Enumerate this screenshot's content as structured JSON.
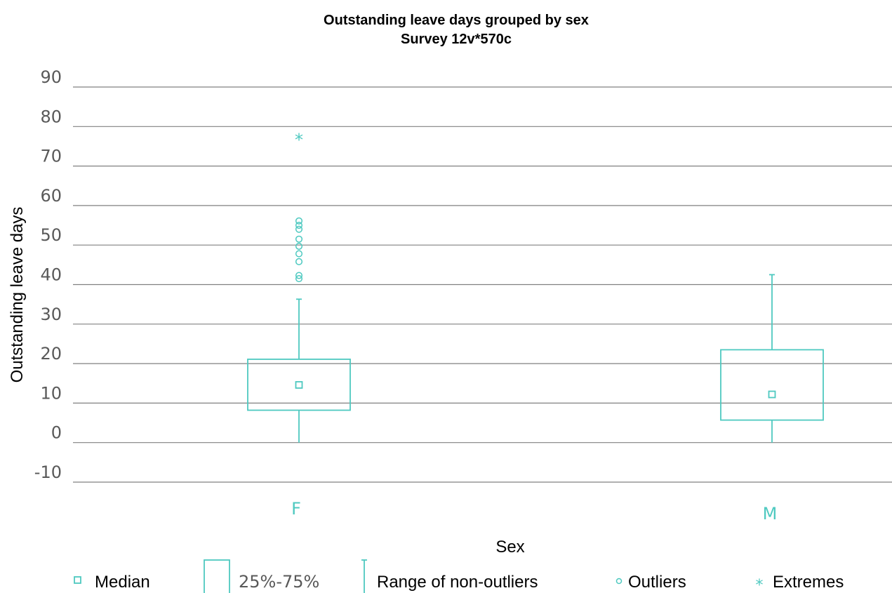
{
  "chart_data": {
    "type": "box",
    "title": "Outstanding leave days grouped by sex",
    "subtitle": "Survey 12v*570c",
    "xlabel": "Sex",
    "ylabel": "Outstanding leave days",
    "ylim": [
      -10,
      90
    ],
    "yticks": [
      "90",
      "80",
      "70",
      "60",
      "50",
      "40",
      "30",
      "20",
      "10",
      "0",
      "-10"
    ],
    "grid": true,
    "legend_position": "bottom",
    "color": "#4ec9c0",
    "categories": [
      "F",
      "M"
    ],
    "boxes": [
      {
        "category": "F",
        "median": 14.6,
        "q1": 8.2,
        "q3": 21.1,
        "whisker_low": 0,
        "whisker_high": 36.3,
        "outliers": [
          41.5,
          42.3,
          45.8,
          47.8,
          49.7,
          51.5,
          54.0,
          55.0,
          56.1
        ],
        "extremes": [
          77.3
        ]
      },
      {
        "category": "M",
        "median": 12.2,
        "q1": 5.7,
        "q3": 23.5,
        "whisker_low": 0,
        "whisker_high": 42.5,
        "outliers": [],
        "extremes": []
      }
    ],
    "legend": {
      "median": "Median",
      "box": "25%-75%",
      "range": "Range of non-outliers",
      "outliers": "Outliers",
      "extremes": "Extremes"
    }
  }
}
